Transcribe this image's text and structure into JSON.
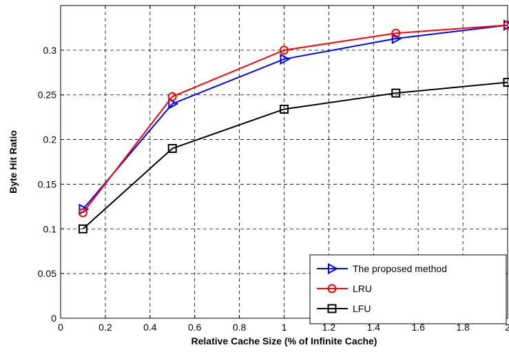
{
  "chart_data": {
    "type": "line",
    "xlabel": "Relative Cache Size (% of Infinite Cache)",
    "ylabel": "Byte Hit Ratio",
    "xlim": [
      0,
      2
    ],
    "ylim": [
      0,
      0.35
    ],
    "x_ticks": [
      "0",
      "0.2",
      "0.4",
      "0.6",
      "0.8",
      "1",
      "1.2",
      "1.4",
      "1.6",
      "1.8",
      "2"
    ],
    "y_ticks": [
      "0",
      "0.05",
      "0.1",
      "0.15",
      "0.2",
      "0.25",
      "0.3"
    ],
    "grid": true,
    "legend_position": "bottom-right",
    "series": [
      {
        "name": "The proposed method",
        "color": "#0000ff",
        "marker": "triangle-right",
        "x": [
          0.1,
          0.5,
          1,
          1.5,
          2
        ],
        "y": [
          0.122,
          0.24,
          0.29,
          0.313,
          0.328
        ]
      },
      {
        "name": "LRU",
        "color": "#ff0000",
        "marker": "circle",
        "x": [
          0.1,
          0.5,
          1,
          1.5,
          2
        ],
        "y": [
          0.118,
          0.248,
          0.3,
          0.319,
          0.328
        ]
      },
      {
        "name": "LFU",
        "color": "#000000",
        "marker": "square",
        "x": [
          0.1,
          0.5,
          1,
          1.5,
          2
        ],
        "y": [
          0.1,
          0.19,
          0.234,
          0.252,
          0.264
        ]
      }
    ]
  }
}
